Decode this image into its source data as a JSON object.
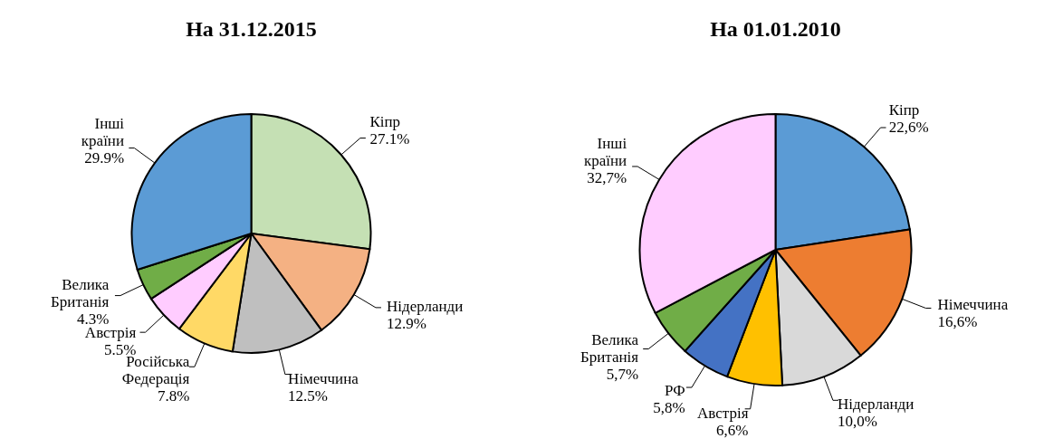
{
  "chart_data": [
    {
      "type": "pie",
      "title": "На 31.12.2015",
      "categories": [
        "Кіпр",
        "Нідерланди",
        "Німеччина",
        "Російська Федерація",
        "Австрія",
        "Велика Британія",
        "Інші країни"
      ],
      "values": [
        27.1,
        12.9,
        12.5,
        7.8,
        5.5,
        4.3,
        29.9
      ],
      "colors": [
        "#c5e0b4",
        "#f4b183",
        "#bfbfbf",
        "#ffd966",
        "#ffccff",
        "#70ad47",
        "#5b9bd5"
      ],
      "value_labels": [
        "27.1%",
        "12.9%",
        "12.5%",
        "7.8%",
        "5.5%",
        "4.3%",
        "29.9%"
      ]
    },
    {
      "type": "pie",
      "title": "На 01.01.2010",
      "categories": [
        "Кіпр",
        "Німеччина",
        "Нідерланди",
        "Австрія",
        "РФ",
        "Велика Британія",
        "Інші країни"
      ],
      "values": [
        22.6,
        16.6,
        10.0,
        6.6,
        5.8,
        5.7,
        32.7
      ],
      "colors": [
        "#5b9bd5",
        "#ed7d31",
        "#d9d9d9",
        "#ffc000",
        "#4472c4",
        "#70ad47",
        "#ffccff"
      ],
      "value_labels": [
        "22,6%",
        "16,6%",
        "10,0%",
        "6,6%",
        "5,8%",
        "5,7%",
        "32,7%"
      ]
    }
  ]
}
